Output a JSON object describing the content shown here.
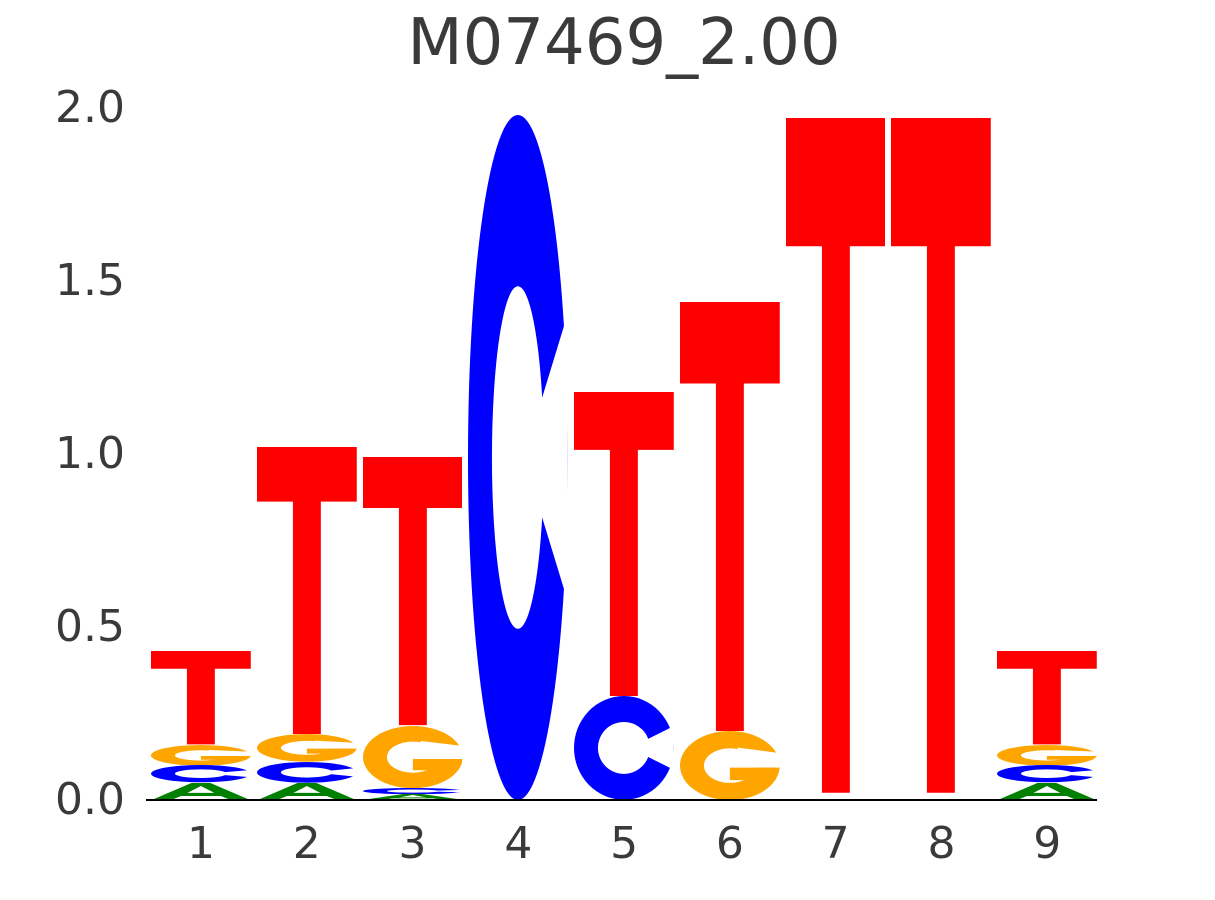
{
  "chart_data": {
    "type": "sequence-logo",
    "title": "M07469_2.00",
    "ylabel": "Bits",
    "xlabel": "",
    "ylim": [
      0,
      2.0
    ],
    "grid": false,
    "yticks": [
      {
        "label": "0.0",
        "value": 0.0
      },
      {
        "label": "0.5",
        "value": 0.5
      },
      {
        "label": "1.0",
        "value": 1.0
      },
      {
        "label": "1.5",
        "value": 1.5
      },
      {
        "label": "2.0",
        "value": 2.0
      }
    ],
    "colors": {
      "A": "#008000",
      "C": "#0000FF",
      "G": "#FFA500",
      "T": "#FF0000"
    },
    "positions": [
      {
        "pos": "1",
        "letters": [
          {
            "base": "A",
            "from": 0.0,
            "to": 0.05
          },
          {
            "base": "C",
            "from": 0.05,
            "to": 0.1
          },
          {
            "base": "G",
            "from": 0.1,
            "to": 0.16
          },
          {
            "base": "T",
            "from": 0.16,
            "to": 0.43
          }
        ]
      },
      {
        "pos": "2",
        "letters": [
          {
            "base": "A",
            "from": 0.0,
            "to": 0.05
          },
          {
            "base": "C",
            "from": 0.05,
            "to": 0.11
          },
          {
            "base": "G",
            "from": 0.11,
            "to": 0.19
          },
          {
            "base": "T",
            "from": 0.19,
            "to": 1.02
          }
        ]
      },
      {
        "pos": "3",
        "letters": [
          {
            "base": "A",
            "from": 0.0,
            "to": 0.017
          },
          {
            "base": "C",
            "from": 0.017,
            "to": 0.035
          },
          {
            "base": "G",
            "from": 0.035,
            "to": 0.215
          },
          {
            "base": "T",
            "from": 0.215,
            "to": 0.99
          }
        ]
      },
      {
        "pos": "4",
        "letters": [
          {
            "base": "C",
            "from": 0.0,
            "to": 1.98
          }
        ]
      },
      {
        "pos": "5",
        "letters": [
          {
            "base": "C",
            "from": 0.0,
            "to": 0.3
          },
          {
            "base": "T",
            "from": 0.3,
            "to": 1.18
          }
        ]
      },
      {
        "pos": "6",
        "letters": [
          {
            "base": "G",
            "from": 0.0,
            "to": 0.2
          },
          {
            "base": "T",
            "from": 0.2,
            "to": 1.44
          }
        ]
      },
      {
        "pos": "7",
        "letters": [
          {
            "base": "T",
            "from": 0.02,
            "to": 1.97
          }
        ]
      },
      {
        "pos": "8",
        "letters": [
          {
            "base": "T",
            "from": 0.02,
            "to": 1.97
          }
        ]
      },
      {
        "pos": "9",
        "letters": [
          {
            "base": "A",
            "from": 0.0,
            "to": 0.05
          },
          {
            "base": "C",
            "from": 0.05,
            "to": 0.1
          },
          {
            "base": "G",
            "from": 0.1,
            "to": 0.16
          },
          {
            "base": "T",
            "from": 0.16,
            "to": 0.43
          }
        ]
      }
    ]
  }
}
